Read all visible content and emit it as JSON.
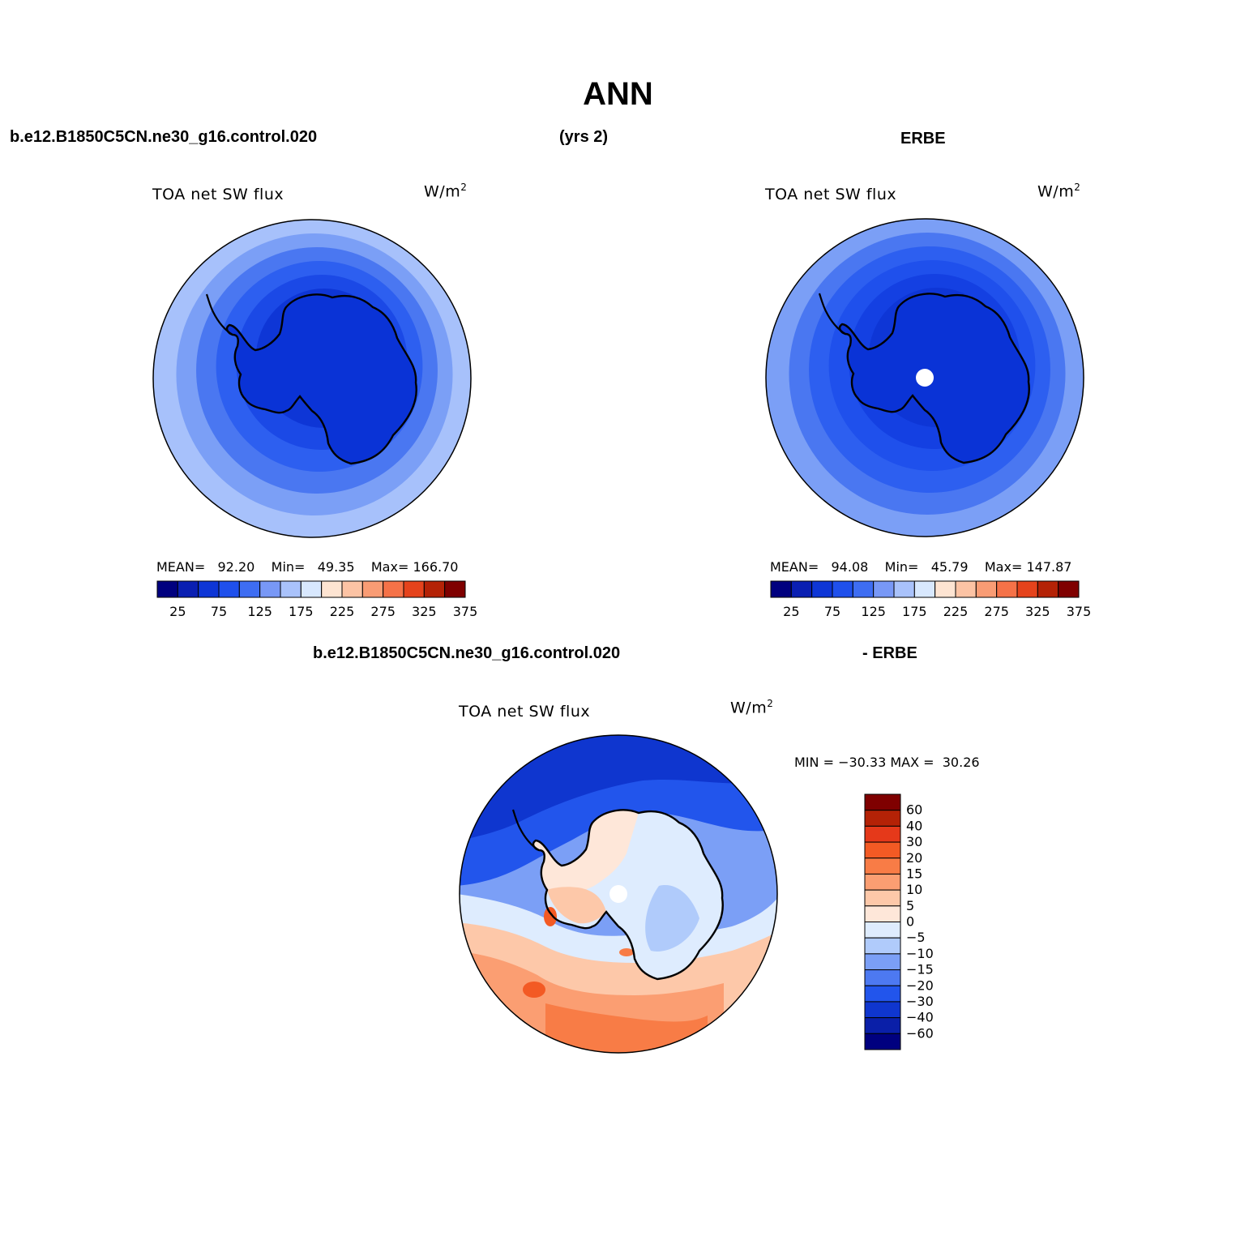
{
  "title": "ANN",
  "header": {
    "left": "b.e12.B1850C5CN.ne30_g16.control.020",
    "center": "(yrs 2)",
    "right": "ERBE",
    "diff_left": "b.e12.B1850C5CN.ne30_g16.control.020",
    "diff_right": "- ERBE"
  },
  "panels": [
    {
      "variable": "TOA net SW flux",
      "units_base": "W/m",
      "units_exp": "2",
      "stats": {
        "mean_label": "MEAN=",
        "mean": "92.20",
        "min_label": "Min=",
        "min": "49.35",
        "max_label": "Max=",
        "max": "166.70"
      }
    },
    {
      "variable": "TOA net SW flux",
      "units_base": "W/m",
      "units_exp": "2",
      "stats": {
        "mean_label": "MEAN=",
        "mean": "94.08",
        "min_label": "Min=",
        "min": "45.79",
        "max_label": "Max=",
        "max": "147.87"
      }
    },
    {
      "variable": "TOA net SW flux",
      "units_base": "W/m",
      "units_exp": "2",
      "stats": {
        "text": "MIN = −30.33 MAX =  30.26"
      }
    }
  ],
  "colorbars": {
    "mean": {
      "colors": [
        "#00007f",
        "#0a1fb2",
        "#0e36d6",
        "#1f50ec",
        "#3e6df2",
        "#7898f6",
        "#a9c2fb",
        "#d8e8fe",
        "#fde4d2",
        "#fcc3a4",
        "#f99c74",
        "#f57248",
        "#e5431c",
        "#b42206",
        "#7f0000"
      ],
      "tick_labels": [
        "25",
        "75",
        "125",
        "175",
        "225",
        "275",
        "325",
        "375"
      ]
    },
    "diff": {
      "colors": [
        "#7f0000",
        "#b42206",
        "#e5391a",
        "#f35a24",
        "#f87c46",
        "#fb9e72",
        "#fdc8a9",
        "#fee7d9",
        "#deecfe",
        "#b0cbfb",
        "#7b9ff6",
        "#4d79f1",
        "#2255ec",
        "#0f36cf",
        "#0a1fa8",
        "#00007f"
      ],
      "tick_labels": [
        "60",
        "40",
        "30",
        "20",
        "15",
        "10",
        "5",
        "0",
        "−5",
        "−10",
        "−15",
        "−20",
        "−30",
        "−40",
        "−60"
      ]
    }
  },
  "maps": [
    {
      "name": "model",
      "rings": [
        "#a7c1fb",
        "#7b9ff6",
        "#4a77f1",
        "#2d5ff0",
        "#1b49e6",
        "#0e36d6"
      ],
      "pole_hole": false
    },
    {
      "name": "obs",
      "rings": [
        "#7b9ff6",
        "#4a77f1",
        "#2d5ff0",
        "#1f50ec",
        "#1440e2",
        "#0e36d6"
      ],
      "pole_hole": true
    },
    {
      "name": "diff",
      "pole_hole": true
    }
  ]
}
